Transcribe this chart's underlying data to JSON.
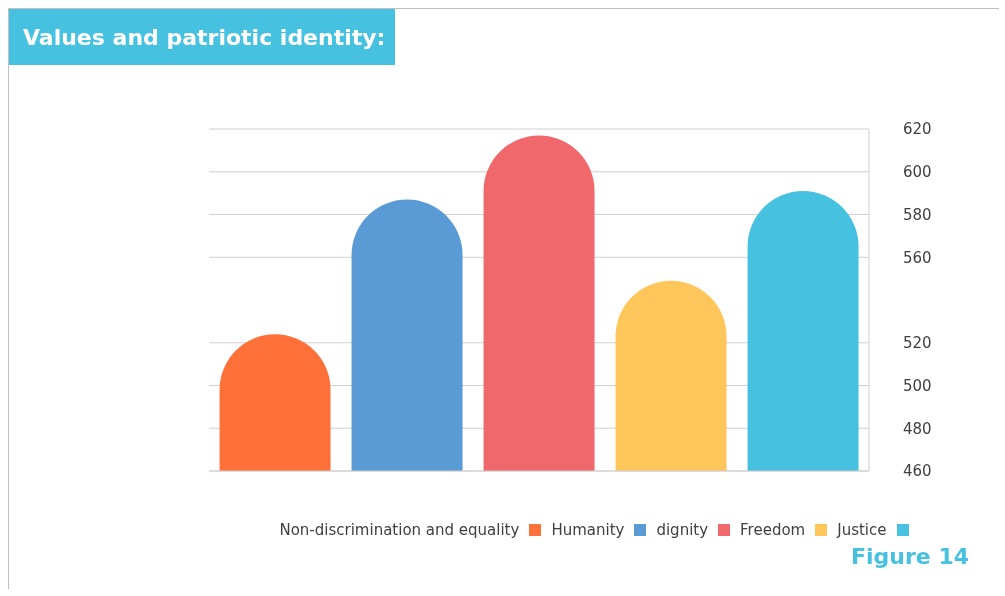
{
  "chart_data": {
    "type": "bar",
    "title": "Values and patriotic identity:",
    "categories": [
      null,
      null,
      null,
      null,
      null
    ],
    "series": [
      {
        "name": "Non-discrimination and equality",
        "color": "#ff7139",
        "values": [
          524,
          null,
          null,
          null,
          null
        ]
      },
      {
        "name": "Humanity",
        "color": "#5b9bd5",
        "values": [
          null,
          587,
          null,
          null,
          null
        ]
      },
      {
        "name": "dignity",
        "color": "#f0686b",
        "values": [
          null,
          null,
          617,
          null,
          null
        ]
      },
      {
        "name": "Freedom",
        "color": "#ffc65c",
        "values": [
          null,
          null,
          null,
          549,
          null
        ]
      },
      {
        "name": "Justice",
        "color": "#47c1e0",
        "values": [
          null,
          null,
          null,
          null,
          591
        ]
      }
    ],
    "stacked": true,
    "ylim": [
      460,
      620
    ],
    "yticks": [
      460,
      480,
      500,
      520,
      560,
      580,
      600,
      620
    ],
    "grid": "y",
    "legend": "bottom",
    "tick_labels": "y",
    "annotations": [
      "Figure 14"
    ]
  }
}
